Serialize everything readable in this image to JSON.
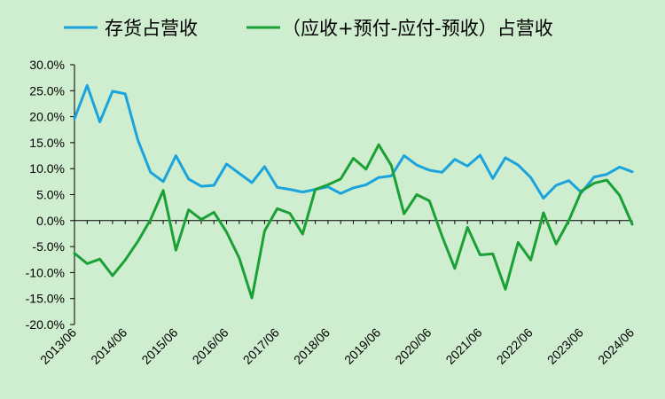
{
  "chart_data": {
    "type": "line",
    "title": "",
    "xlabel": "",
    "ylabel": "",
    "ylim": [
      -0.2,
      0.3
    ],
    "y_tick_values": [
      0.3,
      0.25,
      0.2,
      0.15,
      0.1,
      0.05,
      0.0,
      -0.05,
      -0.1,
      -0.15,
      -0.2
    ],
    "y_tick_labels": [
      "30.0%",
      "25.0%",
      "20.0%",
      "15.0%",
      "10.0%",
      "5.0%",
      "0.0%",
      "-5.0%",
      "-10.0%",
      "-15.0%",
      "-20.0%"
    ],
    "x_tick_labels": [
      "2013/06",
      "2014/06",
      "2015/06",
      "2016/06",
      "2017/06",
      "2018/06",
      "2019/06",
      "2020/06",
      "2021/06",
      "2022/06",
      "2023/06",
      "2024/06"
    ],
    "x": [
      "2013/06",
      "2013/09",
      "2013/12",
      "2014/03",
      "2014/06",
      "2014/09",
      "2014/12",
      "2015/03",
      "2015/06",
      "2015/09",
      "2015/12",
      "2016/03",
      "2016/06",
      "2016/09",
      "2016/12",
      "2017/03",
      "2017/06",
      "2017/09",
      "2017/12",
      "2018/03",
      "2018/06",
      "2018/09",
      "2018/12",
      "2019/03",
      "2019/06",
      "2019/09",
      "2019/12",
      "2020/03",
      "2020/06",
      "2020/09",
      "2020/12",
      "2021/03",
      "2021/06",
      "2021/09",
      "2021/12",
      "2022/03",
      "2022/06",
      "2022/09",
      "2022/12",
      "2023/03",
      "2023/06",
      "2023/09",
      "2023/12",
      "2024/03",
      "2024/06"
    ],
    "grid": false,
    "legend_position": "top",
    "series": [
      {
        "name": "存货占营收",
        "color": "#1aa3dc",
        "values": [
          0.196,
          0.26,
          0.19,
          0.249,
          0.244,
          0.155,
          0.093,
          0.075,
          0.125,
          0.08,
          0.066,
          0.068,
          0.109,
          0.091,
          0.073,
          0.104,
          0.064,
          0.06,
          0.055,
          0.06,
          0.065,
          0.052,
          0.063,
          0.069,
          0.083,
          0.086,
          0.125,
          0.107,
          0.097,
          0.093,
          0.118,
          0.105,
          0.126,
          0.081,
          0.121,
          0.107,
          0.083,
          0.043,
          0.068,
          0.077,
          0.054,
          0.084,
          0.089,
          0.103,
          0.094
        ]
      },
      {
        "name": "（应收+预付-应付-预收）占营收",
        "color": "#1aa035",
        "values": [
          -0.063,
          -0.083,
          -0.074,
          -0.106,
          -0.076,
          -0.04,
          0.002,
          0.058,
          -0.057,
          0.021,
          0.002,
          0.016,
          -0.022,
          -0.072,
          -0.149,
          -0.02,
          0.023,
          0.014,
          -0.026,
          0.06,
          0.069,
          0.08,
          0.12,
          0.099,
          0.146,
          0.106,
          0.013,
          0.05,
          0.038,
          -0.03,
          -0.092,
          -0.013,
          -0.066,
          -0.064,
          -0.132,
          -0.042,
          -0.076,
          0.015,
          -0.045,
          0.0,
          0.057,
          0.072,
          0.078,
          0.049,
          -0.007
        ]
      }
    ]
  }
}
